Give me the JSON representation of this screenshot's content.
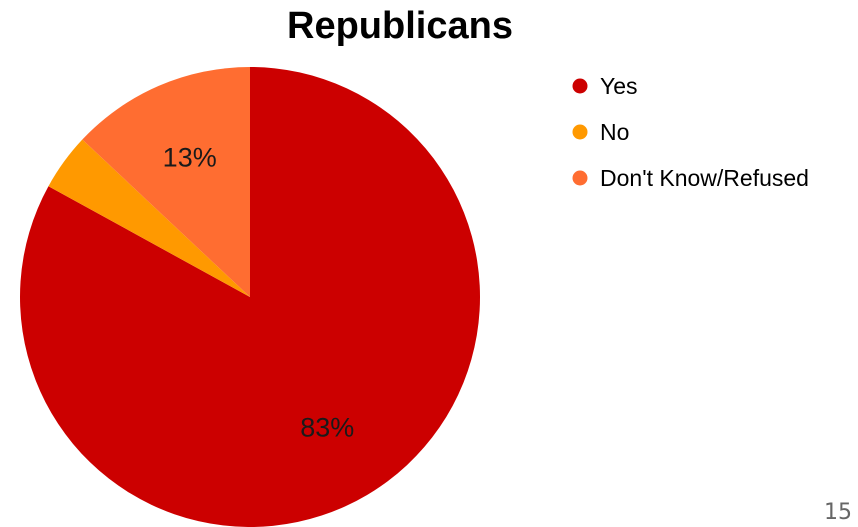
{
  "page_number": "15",
  "chart_data": {
    "type": "pie",
    "title": "Republicans",
    "slices": [
      {
        "name": "Yes",
        "value": 83,
        "label": "83%",
        "color": "#cc0000"
      },
      {
        "name": "No",
        "value": 4,
        "label": "",
        "color": "#ff9900"
      },
      {
        "name": "Don't Know/Refused",
        "value": 13,
        "label": "13%",
        "color": "#ff6d31"
      }
    ],
    "start": "12 o'clock",
    "direction": "clockwise",
    "legend_position": "right"
  }
}
